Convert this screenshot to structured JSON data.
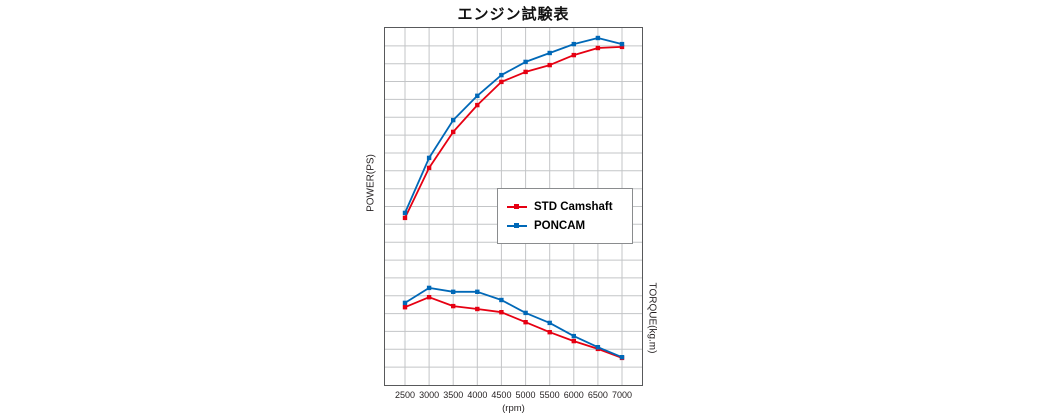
{
  "page": {
    "background": "#ffffff"
  },
  "chart_data": {
    "type": "line",
    "title": "エンジン試験表",
    "x": [
      2500,
      3000,
      3500,
      4000,
      4500,
      5000,
      5500,
      6000,
      6500,
      7000
    ],
    "xlabel": "(rpm)",
    "y_axis_left": "POWER(PS)",
    "y_axis_right": "TORQUE(kg.m)",
    "y_value_units": "percent-of-plot-height (no numeric y-axis tick labels are shown in the chart)",
    "grid": true,
    "grid_rows": 20,
    "legend": [
      "STD Camshaft",
      "PONCAM"
    ],
    "legend_position": "center-right-inside-plot",
    "colors": {
      "std_camshaft": "#e60012",
      "poncam": "#0068b7",
      "grid": "#c3c5c7",
      "border": "#58595b"
    },
    "series": [
      {
        "name": "STD Camshaft",
        "measure": "power",
        "color": "#e60012",
        "values": [
          46.8,
          60.8,
          70.9,
          78.4,
          84.9,
          87.7,
          89.6,
          92.4,
          94.4,
          94.7
        ]
      },
      {
        "name": "PONCAM",
        "measure": "power",
        "color": "#0068b7",
        "values": [
          48.2,
          63.6,
          74.2,
          81.0,
          86.8,
          90.5,
          93.0,
          95.5,
          97.2,
          95.5
        ]
      },
      {
        "name": "STD Camshaft",
        "measure": "torque",
        "color": "#e60012",
        "values": [
          21.8,
          24.6,
          22.1,
          21.3,
          20.4,
          17.6,
          14.8,
          12.3,
          10.1,
          7.6
        ]
      },
      {
        "name": "PONCAM",
        "measure": "torque",
        "color": "#0068b7",
        "values": [
          23.0,
          27.2,
          26.1,
          26.1,
          23.8,
          20.2,
          17.4,
          13.7,
          10.6,
          7.8
        ]
      }
    ]
  }
}
